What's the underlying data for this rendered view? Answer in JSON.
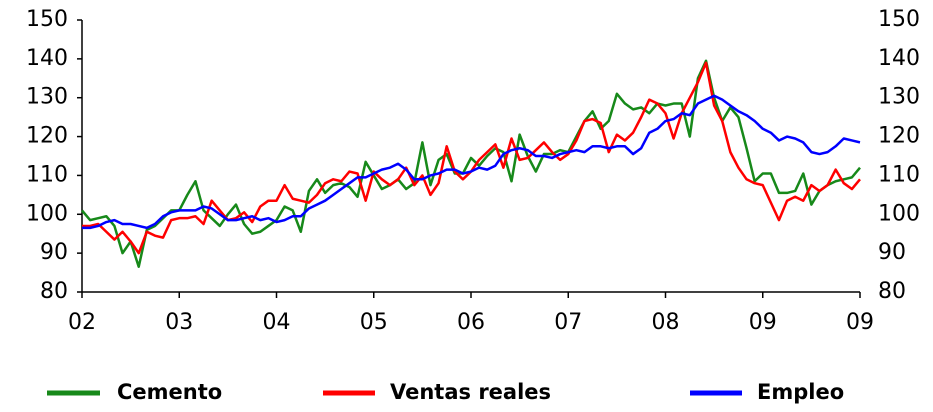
{
  "chart_data": {
    "type": "line",
    "categories": [
      "02",
      null,
      null,
      null,
      null,
      null,
      null,
      null,
      null,
      null,
      null,
      null,
      "03",
      null,
      null,
      null,
      null,
      null,
      null,
      null,
      null,
      null,
      null,
      null,
      "04",
      null,
      null,
      null,
      null,
      null,
      null,
      null,
      null,
      null,
      null,
      null,
      "05",
      null,
      null,
      null,
      null,
      null,
      null,
      null,
      null,
      null,
      null,
      null,
      "06",
      null,
      null,
      null,
      null,
      null,
      null,
      null,
      null,
      null,
      null,
      null,
      "07",
      null,
      null,
      null,
      null,
      null,
      null,
      null,
      null,
      null,
      null,
      null,
      "08",
      null,
      null,
      null,
      null,
      null,
      null,
      null,
      null,
      null,
      null,
      null,
      "09",
      null,
      null,
      null,
      null,
      null,
      null,
      null,
      null,
      null,
      null,
      null,
      "09"
    ],
    "series": [
      {
        "name": "Cemento",
        "color": "#17891a",
        "values": [
          101,
          98.5,
          99,
          99.5,
          97,
          90,
          93,
          86.5,
          96,
          97,
          99,
          101,
          101,
          105,
          108.5,
          101,
          99,
          97,
          100,
          102.5,
          97.5,
          95,
          95.5,
          97,
          98.5,
          102,
          101,
          95.5,
          106,
          109,
          105.5,
          107.5,
          108,
          107,
          104.5,
          113.5,
          110,
          106.5,
          107.5,
          109,
          106.5,
          108,
          118.5,
          107.5,
          114,
          115.5,
          110.5,
          110.5,
          114.5,
          112.5,
          115,
          117,
          116,
          108.5,
          120.5,
          115,
          111,
          115.5,
          115.5,
          116.5,
          116,
          120,
          124,
          126.5,
          122,
          124,
          131,
          128.5,
          127,
          127.5,
          126,
          128.5,
          128,
          128.5,
          128.5,
          120,
          135,
          139.5,
          130,
          124,
          127.5,
          125,
          117,
          108.5,
          110.5,
          110.5,
          105.5,
          105.5,
          106,
          110.5,
          102.5,
          106,
          107.5,
          108.5,
          109,
          109.5,
          112
        ]
      },
      {
        "name": "Ventas reales",
        "color": "#ff0000",
        "values": [
          97,
          97,
          97.5,
          95.5,
          93.5,
          95.5,
          93,
          90,
          95.5,
          94.5,
          94,
          98.5,
          99,
          99,
          99.5,
          97.5,
          103.5,
          101,
          98.5,
          99,
          100.5,
          98,
          102,
          103.5,
          103.5,
          107.5,
          104,
          103.5,
          103,
          105,
          108,
          109,
          108.5,
          111,
          110.5,
          103.5,
          111,
          109,
          107.5,
          109,
          112,
          107.5,
          110,
          105,
          108,
          117.5,
          111,
          109,
          111,
          114,
          116,
          118,
          112,
          119.5,
          114,
          114.5,
          116.5,
          118.5,
          116,
          114,
          115.5,
          119,
          124,
          124.5,
          123.5,
          116,
          120.5,
          119,
          121,
          125,
          129.5,
          128.5,
          126,
          119.5,
          126,
          130,
          134,
          139,
          128,
          124,
          116,
          112,
          109,
          108,
          107.5,
          103,
          98.5,
          103.5,
          104.5,
          103.5,
          107.5,
          106,
          107.5,
          111.5,
          108,
          106.5,
          109
        ]
      },
      {
        "name": "Empleo",
        "color": "#0000ff",
        "values": [
          96.5,
          96.5,
          97,
          98,
          98.5,
          97.5,
          97.5,
          97,
          96.5,
          97.5,
          99.5,
          100.5,
          101,
          101,
          101,
          102,
          101.5,
          100,
          98.5,
          98.5,
          99,
          99.5,
          98.5,
          99,
          98,
          98.5,
          99.5,
          99.5,
          101.5,
          102.5,
          103.5,
          105,
          106.5,
          108,
          109.5,
          109.5,
          110.5,
          111.5,
          112,
          113,
          111.5,
          109,
          109,
          110,
          110.5,
          111.5,
          111.5,
          110.5,
          111,
          112,
          111.5,
          112.5,
          115.5,
          116.5,
          117,
          116.5,
          115,
          115,
          114.5,
          115.5,
          116,
          116.5,
          116,
          117.5,
          117.5,
          117,
          117.5,
          117.5,
          115.5,
          117,
          121,
          122,
          124,
          124.5,
          126,
          125.5,
          128.5,
          129.5,
          130.5,
          129.5,
          128,
          126.5,
          125.5,
          124,
          122,
          121,
          119,
          120,
          119.5,
          118.5,
          116,
          115.5,
          116,
          117.5,
          119.5,
          119,
          118.5
        ]
      }
    ],
    "ylim": [
      80,
      150
    ],
    "yticks": [
      80,
      90,
      100,
      110,
      120,
      130,
      140,
      150
    ],
    "y2lim": [
      80,
      150
    ],
    "y2ticks": [
      80,
      90,
      100,
      110,
      120,
      130,
      140,
      150
    ],
    "grid": false,
    "legend": "bottom"
  }
}
